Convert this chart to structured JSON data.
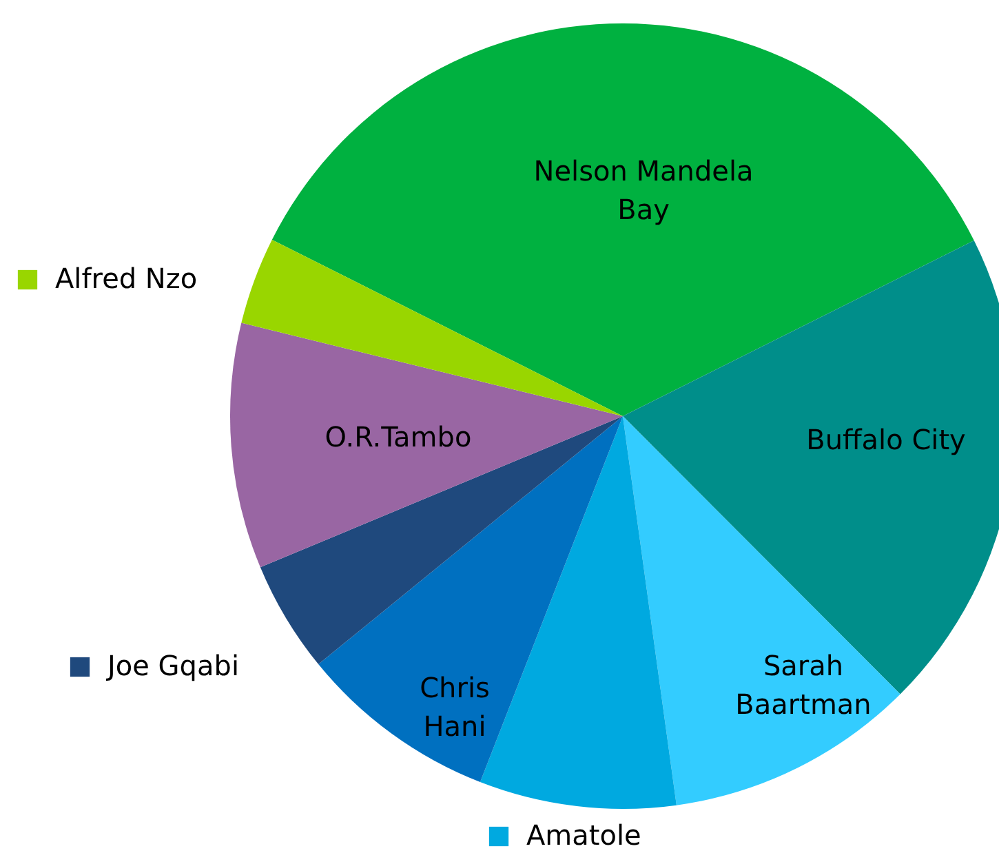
{
  "chart_data": {
    "type": "pie",
    "categories": [
      "Nelson Mandela Bay",
      "Buffalo City",
      "Sarah Baartman",
      "Amatole",
      "Chris Hani",
      "Joe Gqabi",
      "O.R.Tambo",
      "Alfred Nzo"
    ],
    "values": [
      35.2,
      19.9,
      10.3,
      8.1,
      8.2,
      4.6,
      10.1,
      3.6
    ],
    "colors": [
      "#00b140",
      "#008e8a",
      "#33ccff",
      "#00a9e0",
      "#0070c0",
      "#1f497d",
      "#9966a3",
      "#99d600"
    ],
    "legend": "left"
  }
}
